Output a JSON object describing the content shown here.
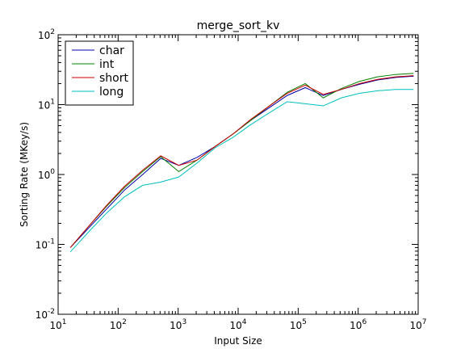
{
  "chart_data": {
    "type": "line",
    "title": "merge_sort_kv",
    "xlabel": "Input Size",
    "ylabel": "Sorting Rate (MKey/s)",
    "xscale": "log",
    "yscale": "log",
    "xlim": [
      10,
      10000000
    ],
    "ylim": [
      0.01,
      100
    ],
    "grid": false,
    "legend_position": "top-left",
    "x_ticks": [
      {
        "value": 10,
        "base": "10",
        "exp": "1"
      },
      {
        "value": 100,
        "base": "10",
        "exp": "2"
      },
      {
        "value": 1000,
        "base": "10",
        "exp": "3"
      },
      {
        "value": 10000,
        "base": "10",
        "exp": "4"
      },
      {
        "value": 100000,
        "base": "10",
        "exp": "5"
      },
      {
        "value": 1000000,
        "base": "10",
        "exp": "6"
      },
      {
        "value": 10000000,
        "base": "10",
        "exp": "7"
      }
    ],
    "y_ticks": [
      {
        "value": 0.01,
        "base": "10",
        "exp": "-2"
      },
      {
        "value": 0.1,
        "base": "10",
        "exp": "-1"
      },
      {
        "value": 1,
        "base": "10",
        "exp": "0"
      },
      {
        "value": 10,
        "base": "10",
        "exp": "1"
      },
      {
        "value": 100,
        "base": "10",
        "exp": "2"
      }
    ],
    "x": [
      16,
      32,
      64,
      128,
      256,
      512,
      1024,
      2048,
      4096,
      8192,
      16384,
      32768,
      65536,
      131072,
      262144,
      524288,
      1048576,
      2097152,
      4194304,
      8388608
    ],
    "series": [
      {
        "name": "char",
        "color": "#0000aa",
        "values": [
          0.09,
          0.17,
          0.32,
          0.6,
          1.0,
          1.7,
          1.35,
          1.75,
          2.5,
          3.8,
          6.0,
          9.0,
          13.5,
          17.5,
          13.5,
          16.5,
          19.5,
          22.5,
          24.5,
          25.5
        ]
      },
      {
        "name": "int",
        "color": "#008000",
        "values": [
          0.09,
          0.18,
          0.35,
          0.65,
          1.1,
          1.8,
          1.1,
          1.6,
          2.5,
          3.8,
          6.0,
          9.5,
          15.0,
          20.0,
          12.5,
          17.0,
          21.5,
          25.0,
          27.0,
          28.0
        ]
      },
      {
        "name": "short",
        "color": "#cc0000",
        "values": [
          0.09,
          0.18,
          0.36,
          0.68,
          1.15,
          1.85,
          1.35,
          1.6,
          2.5,
          3.8,
          6.2,
          9.5,
          14.5,
          19.0,
          14.0,
          16.5,
          20.0,
          23.0,
          25.0,
          26.0
        ]
      },
      {
        "name": "long",
        "color": "#00bfbf",
        "values": [
          0.078,
          0.15,
          0.28,
          0.48,
          0.7,
          0.78,
          0.92,
          1.45,
          2.4,
          3.4,
          5.2,
          7.6,
          11.0,
          10.3,
          9.6,
          12.5,
          14.5,
          15.8,
          16.5,
          16.5
        ]
      }
    ]
  }
}
